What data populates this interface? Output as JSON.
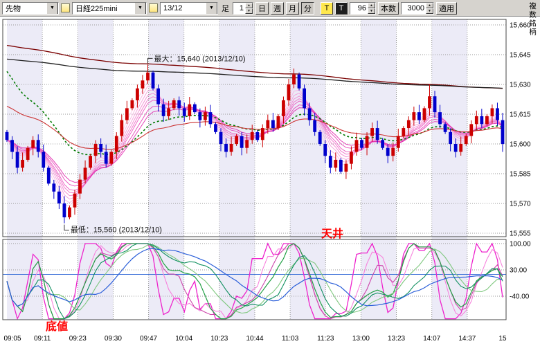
{
  "toolbar": {
    "instrument_type": "先物",
    "symbol": "日経225mini",
    "contract_month": "13/12",
    "bar_label": "足",
    "bar_interval": "1",
    "period_buttons": [
      "日",
      "週",
      "月",
      "分"
    ],
    "tick_button": "T",
    "tick_button2": "T",
    "bars_count": "96",
    "bars_button": "本数",
    "range_value": "3000",
    "apply_button": "適用",
    "multi_symbol_label": "複数銘柄"
  },
  "icons": {
    "chevron_down": "▼",
    "spin_up": "▲",
    "spin_down": "▼"
  },
  "annotations": {
    "max_label": "最大：15,640 (2013/12/10)",
    "min_label": "最低：15,560 (2013/12/10)",
    "ceiling": "天井",
    "bottom": "底値"
  },
  "axes": {
    "price_labels": [
      "15,660",
      "15,645",
      "15,630",
      "15,615",
      "15,600",
      "15,585",
      "15,570",
      "15,555"
    ],
    "osc_labels": [
      "100.00",
      "30.00",
      "-40.00"
    ],
    "time_labels": [
      "09:05",
      "09:11",
      "09:23",
      "09:30",
      "09:47",
      "10:04",
      "10:23",
      "10:44",
      "11:03",
      "11:23",
      "13:00",
      "13:23",
      "14:07",
      "14:37",
      "15"
    ]
  },
  "chart_data": {
    "type": "candlestick",
    "symbol": "日経225mini",
    "session_date": "2013/12/10",
    "price_axis": {
      "min": 15553,
      "max": 15663,
      "gridlines": [
        15660,
        15645,
        15630,
        15615,
        15600,
        15585,
        15570,
        15555
      ]
    },
    "first_open": 15606,
    "closes": [
      15602,
      15596,
      15588,
      15592,
      15598,
      15602,
      15596,
      15588,
      15580,
      15576,
      15570,
      15563,
      15568,
      15575,
      15582,
      15588,
      15594,
      15600,
      15596,
      15590,
      15596,
      15604,
      15612,
      15618,
      15622,
      15628,
      15632,
      15636,
      15628,
      15620,
      15614,
      15618,
      15622,
      15618,
      15614,
      15620,
      15616,
      15612,
      15616,
      15610,
      15606,
      15600,
      15596,
      15600,
      15604,
      15598,
      15602,
      15606,
      15602,
      15608,
      15612,
      15608,
      15614,
      15622,
      15630,
      15635,
      15628,
      15618,
      15612,
      15606,
      15600,
      15594,
      15588,
      15592,
      15586,
      15590,
      15596,
      15602,
      15598,
      15604,
      15608,
      15602,
      15598,
      15594,
      15598,
      15604,
      15608,
      15612,
      15616,
      15612,
      15618,
      15624,
      15616,
      15610,
      15606,
      15600,
      15596,
      15600,
      15604,
      15610,
      15614,
      15610,
      15614,
      15618,
      15612,
      15600
    ],
    "high_overrides": {
      "27": 15640,
      "55": 15638,
      "81": 15630
    },
    "low_overrides": {
      "11": 15560,
      "95": 15596
    },
    "annotations": {
      "max_bar": 27,
      "max_price": 15640,
      "min_bar": 11,
      "min_price": 15560
    },
    "overlays": {
      "ribbon": {
        "name": "ema-ribbon",
        "periods": [
          3,
          4,
          5,
          6,
          7,
          8,
          10,
          12
        ]
      },
      "lines": [
        {
          "name": "ma-green-dotted",
          "period": 21,
          "seed": 15640,
          "color_key": "ma_green",
          "dash": "3,3",
          "width": 1.6
        },
        {
          "name": "ma-mid-red",
          "period": 35,
          "seed": 15620,
          "color_key": "ma_red",
          "dash": "",
          "width": 1.1
        },
        {
          "name": "ma-long-maroon",
          "period": 280,
          "seed": 15650,
          "color_key": "ma_maroon",
          "dash": "",
          "width": 1.3
        },
        {
          "name": "ma-long-black",
          "period": 380,
          "seed": 15643,
          "color_key": "ma_black",
          "dash": "",
          "width": 1.3
        }
      ]
    },
    "oscillator": {
      "gridlines": [
        100,
        30,
        -40
      ],
      "range": [
        -105,
        110
      ],
      "reference": 18,
      "series": [
        {
          "name": "osc-fast-magenta",
          "period": 7,
          "smooth": 2,
          "color_key": "osc_m1",
          "width": 1.3
        },
        {
          "name": "osc-fast-signal",
          "period": 9,
          "smooth": 4,
          "color_key": "osc_m2",
          "width": 1.1
        },
        {
          "name": "osc-mid-magenta",
          "period": 13,
          "smooth": 3,
          "color_key": "osc_m3",
          "width": 1.1
        },
        {
          "name": "osc-mid-green",
          "period": 17,
          "smooth": 3,
          "color_key": "osc_g1",
          "width": 1.2
        },
        {
          "name": "osc-mid-green-sig",
          "period": 17,
          "smooth": 8,
          "color_key": "osc_g2",
          "width": 1.1
        },
        {
          "name": "osc-slow-green",
          "period": 26,
          "smooth": 5,
          "color_key": "osc_g3",
          "width": 1.1
        },
        {
          "name": "osc-slow-blue",
          "period": 26,
          "smooth": 12,
          "color_key": "osc_b",
          "width": 1.2
        }
      ]
    }
  },
  "colors": {
    "up": "#cc0000",
    "down": "#0000cc",
    "ribbon": [
      "#fbc4ea",
      "#f8ade1",
      "#f596d8",
      "#f27fcf",
      "#ee68c6",
      "#ea51bd",
      "#e53ab4",
      "#e023ab"
    ],
    "ma_green": "#007a00",
    "ma_red": "#cc3333",
    "ma_maroon": "#7a0000",
    "ma_black": "#202020",
    "osc_m1": "#ee22cc",
    "osc_m2": "#f783dd",
    "osc_m3": "#cc44aa",
    "osc_g1": "#22a044",
    "osc_g2": "#7fc87f",
    "osc_g3": "#0f8f5f",
    "osc_b": "#2b5fd9",
    "osc_ref": "#3a6fd8",
    "stripe": "#ecebf7",
    "grid": "#9a9a9a",
    "border": "#444444",
    "annot_red": "#ff0000",
    "annot_black": "#111111"
  }
}
